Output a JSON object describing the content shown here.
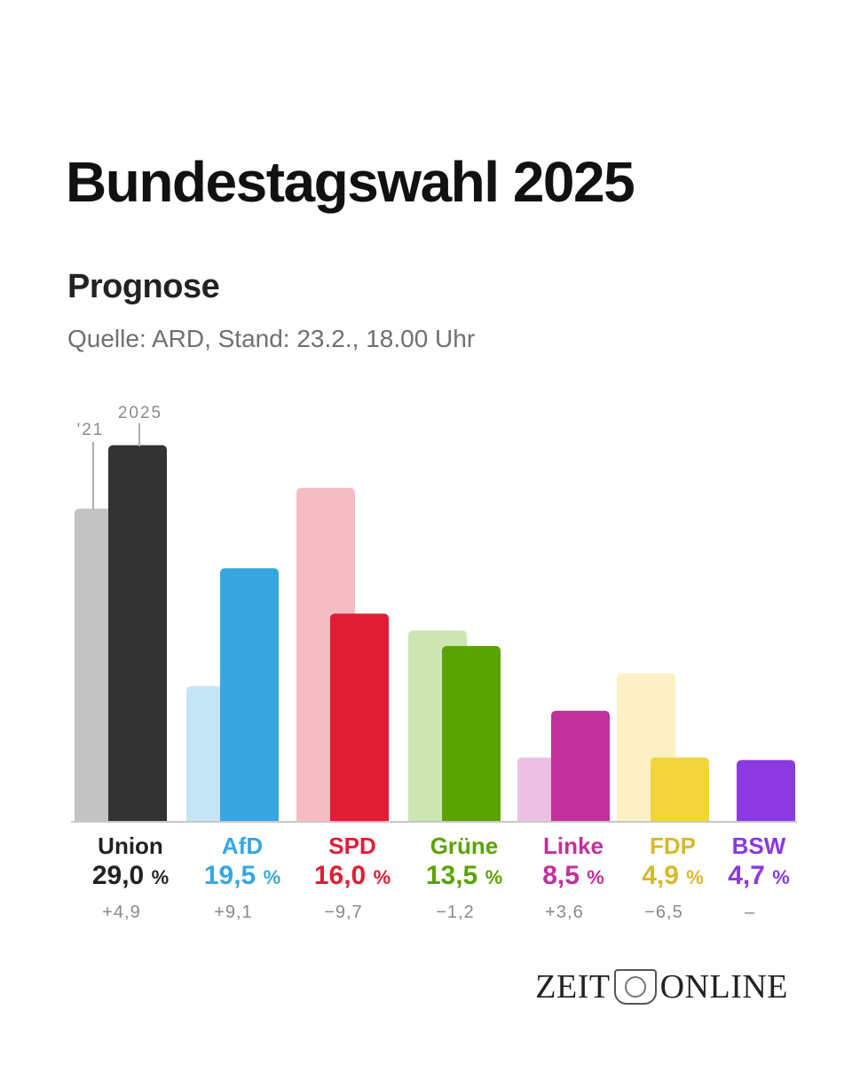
{
  "header": {
    "title": "Bundestagswahl 2025",
    "subtitle": "Prognose",
    "source": "Quelle: ARD, Stand: 23.2., 18.00 Uhr"
  },
  "legend": {
    "prev_label": "'21",
    "curr_label": "2025"
  },
  "chart_data": {
    "type": "bar",
    "title": "Bundestagswahl 2025",
    "subtitle": "Prognose",
    "categories": [
      "Union",
      "AfD",
      "SPD",
      "Grüne",
      "Linke",
      "FDP",
      "BSW"
    ],
    "series": [
      {
        "name": "'21",
        "values": [
          24.1,
          10.4,
          25.7,
          14.7,
          4.9,
          11.4,
          null
        ]
      },
      {
        "name": "2025",
        "values": [
          29.0,
          19.5,
          16.0,
          13.5,
          8.5,
          4.9,
          4.7
        ]
      }
    ],
    "value_labels": [
      "29,0",
      "19,5",
      "16,0",
      "13,5",
      "8,5",
      "4,9",
      "4,7"
    ],
    "percent_sign": "%",
    "diff_labels": [
      "+4,9",
      "+9,1",
      "−9,7",
      "−1,2",
      "+3,6",
      "−6,5",
      "–"
    ],
    "colors": {
      "current": [
        "#333333",
        "#39a6e2",
        "#e11d36",
        "#5aa300",
        "#c0319b",
        "#f2d43d",
        "#8a3ae0"
      ],
      "previous": [
        "#c4c4c4",
        "#c5e4f6",
        "#f6bcc3",
        "#cde6b3",
        "#ecc0e0",
        "#fcf1c4",
        null
      ],
      "label": [
        "#222222",
        "#39a6e2",
        "#e11d36",
        "#5aa300",
        "#c0319b",
        "#d8b92a",
        "#8a3ae0"
      ]
    },
    "ylim": [
      0,
      30
    ],
    "grid": false,
    "legend": "top-left"
  },
  "footer": {
    "logo_left": "ZEIT",
    "logo_right": "ONLINE",
    "crest_icon": "crest-icon"
  }
}
